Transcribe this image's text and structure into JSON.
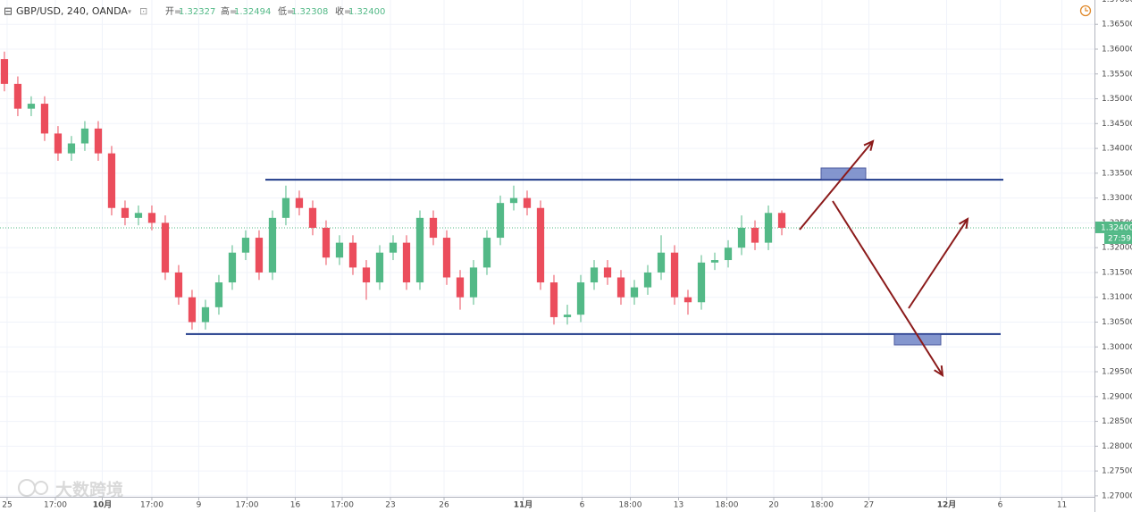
{
  "chart_data": {
    "type": "candlestick",
    "title": "GBP/USD, 240, OANDA",
    "ohlc_header": [
      {
        "label": "开=",
        "value": "1.32327"
      },
      {
        "label": "高=",
        "value": "1.32494"
      },
      {
        "label": "低=",
        "value": "1.32308"
      },
      {
        "label": "收=",
        "value": "1.32400"
      }
    ],
    "up_color": "#53b987",
    "down_color": "#eb4d5c",
    "open": [
      1.358,
      1.353,
      1.348,
      1.349,
      1.343,
      1.339,
      1.341,
      1.344,
      1.339,
      1.328,
      1.326,
      1.327,
      1.325,
      1.315,
      1.31,
      1.305,
      1.308,
      1.313,
      1.319,
      1.322,
      1.315,
      1.326,
      1.33,
      1.328,
      1.324,
      1.318,
      1.321,
      1.316,
      1.313,
      1.319,
      1.321,
      1.313,
      1.326,
      1.322,
      1.314,
      1.31,
      1.316,
      1.322,
      1.329,
      1.33,
      1.328,
      1.313,
      1.306,
      1.3065,
      1.313,
      1.316,
      1.314,
      1.31,
      1.312,
      1.315,
      1.319,
      1.31,
      1.309,
      1.317,
      1.3175,
      1.32,
      1.324,
      1.321,
      1.327
    ],
    "high": [
      1.3595,
      1.3545,
      1.3505,
      1.3505,
      1.3445,
      1.3425,
      1.3455,
      1.3455,
      1.3405,
      1.3295,
      1.3285,
      1.3285,
      1.3265,
      1.3165,
      1.3115,
      1.3095,
      1.3145,
      1.3205,
      1.3235,
      1.3235,
      1.3275,
      1.3325,
      1.3315,
      1.3295,
      1.3255,
      1.3225,
      1.3225,
      1.3175,
      1.3205,
      1.3225,
      1.3225,
      1.3275,
      1.3275,
      1.3235,
      1.3155,
      1.3175,
      1.3235,
      1.3305,
      1.3325,
      1.3315,
      1.3295,
      1.3145,
      1.3085,
      1.3145,
      1.3175,
      1.3175,
      1.3155,
      1.3135,
      1.3165,
      1.3225,
      1.3205,
      1.3115,
      1.3185,
      1.319,
      1.3215,
      1.3265,
      1.3255,
      1.3285,
      1.3275
    ],
    "low": [
      1.3515,
      1.3465,
      1.3465,
      1.3415,
      1.3375,
      1.3375,
      1.3395,
      1.3375,
      1.3265,
      1.3245,
      1.3245,
      1.3235,
      1.3135,
      1.3085,
      1.3035,
      1.3035,
      1.3065,
      1.3115,
      1.3175,
      1.3135,
      1.3135,
      1.3245,
      1.3265,
      1.3225,
      1.3165,
      1.3165,
      1.3145,
      1.3095,
      1.3115,
      1.3175,
      1.3115,
      1.3115,
      1.3205,
      1.3125,
      1.3075,
      1.3085,
      1.3145,
      1.3205,
      1.3275,
      1.3265,
      1.3115,
      1.3045,
      1.3045,
      1.305,
      1.3115,
      1.3125,
      1.3085,
      1.3085,
      1.3105,
      1.3135,
      1.3085,
      1.3065,
      1.3075,
      1.3155,
      1.316,
      1.3185,
      1.3195,
      1.3195,
      1.3225
    ],
    "close": [
      1.353,
      1.348,
      1.349,
      1.343,
      1.339,
      1.341,
      1.344,
      1.339,
      1.328,
      1.326,
      1.327,
      1.325,
      1.315,
      1.31,
      1.305,
      1.308,
      1.313,
      1.319,
      1.322,
      1.315,
      1.326,
      1.33,
      1.328,
      1.324,
      1.318,
      1.321,
      1.316,
      1.313,
      1.319,
      1.321,
      1.313,
      1.326,
      1.322,
      1.314,
      1.31,
      1.316,
      1.322,
      1.329,
      1.33,
      1.328,
      1.313,
      1.306,
      1.3065,
      1.313,
      1.316,
      1.314,
      1.31,
      1.312,
      1.315,
      1.319,
      1.31,
      1.309,
      1.317,
      1.3175,
      1.32,
      1.324,
      1.321,
      1.327,
      1.324
    ],
    "xlim": [
      -0.33,
      81.33
    ],
    "xticks": [
      {
        "value": 0.2,
        "label": "25"
      },
      {
        "value": 3.8,
        "label": "17:00"
      },
      {
        "value": 7.3,
        "label": "10月"
      },
      {
        "value": 11,
        "label": "17:00"
      },
      {
        "value": 14.5,
        "label": "9"
      },
      {
        "value": 18.1,
        "label": "17:00"
      },
      {
        "value": 21.7,
        "label": "16"
      },
      {
        "value": 25.2,
        "label": "17:00"
      },
      {
        "value": 28.8,
        "label": "23"
      },
      {
        "value": 32.8,
        "label": "26"
      },
      {
        "value": 38.7,
        "label": "11月"
      },
      {
        "value": 43.1,
        "label": "6"
      },
      {
        "value": 46.7,
        "label": "18:00"
      },
      {
        "value": 50.3,
        "label": "13"
      },
      {
        "value": 53.9,
        "label": "18:00"
      },
      {
        "value": 57.4,
        "label": "20"
      },
      {
        "value": 61,
        "label": "18:00"
      },
      {
        "value": 64.5,
        "label": "27"
      },
      {
        "value": 70.3,
        "label": "12月"
      },
      {
        "value": 74.3,
        "label": "6"
      },
      {
        "value": 78.9,
        "label": "11"
      }
    ],
    "ylim": [
      1.2698,
      1.3699
    ],
    "yticks": [
      {
        "value": 1.27,
        "label": "1.27000"
      },
      {
        "value": 1.275,
        "label": "1.27500"
      },
      {
        "value": 1.28,
        "label": "1.28000"
      },
      {
        "value": 1.285,
        "label": "1.28500"
      },
      {
        "value": 1.29,
        "label": "1.29000"
      },
      {
        "value": 1.295,
        "label": "1.29500"
      },
      {
        "value": 1.3,
        "label": "1.30000"
      },
      {
        "value": 1.305,
        "label": "1.30500"
      },
      {
        "value": 1.31,
        "label": "1.31000"
      },
      {
        "value": 1.315,
        "label": "1.31500"
      },
      {
        "value": 1.32,
        "label": "1.32000"
      },
      {
        "value": 1.325,
        "label": "1.32500"
      },
      {
        "value": 1.33,
        "label": "1.33000"
      },
      {
        "value": 1.335,
        "label": "1.33500"
      },
      {
        "value": 1.34,
        "label": "1.34000"
      },
      {
        "value": 1.345,
        "label": "1.34500"
      },
      {
        "value": 1.35,
        "label": "1.35000"
      },
      {
        "value": 1.355,
        "label": "1.35500"
      },
      {
        "value": 1.36,
        "label": "1.36000"
      },
      {
        "value": 1.365,
        "label": "1.36500"
      },
      {
        "value": 1.37,
        "label": "1.37000"
      }
    ],
    "grid": true,
    "levels": [
      1.3337,
      1.3026
    ],
    "last_price": {
      "value": 1.324,
      "label": "1.32400"
    },
    "countdown": "27:59",
    "watermark": "大数跨境"
  }
}
